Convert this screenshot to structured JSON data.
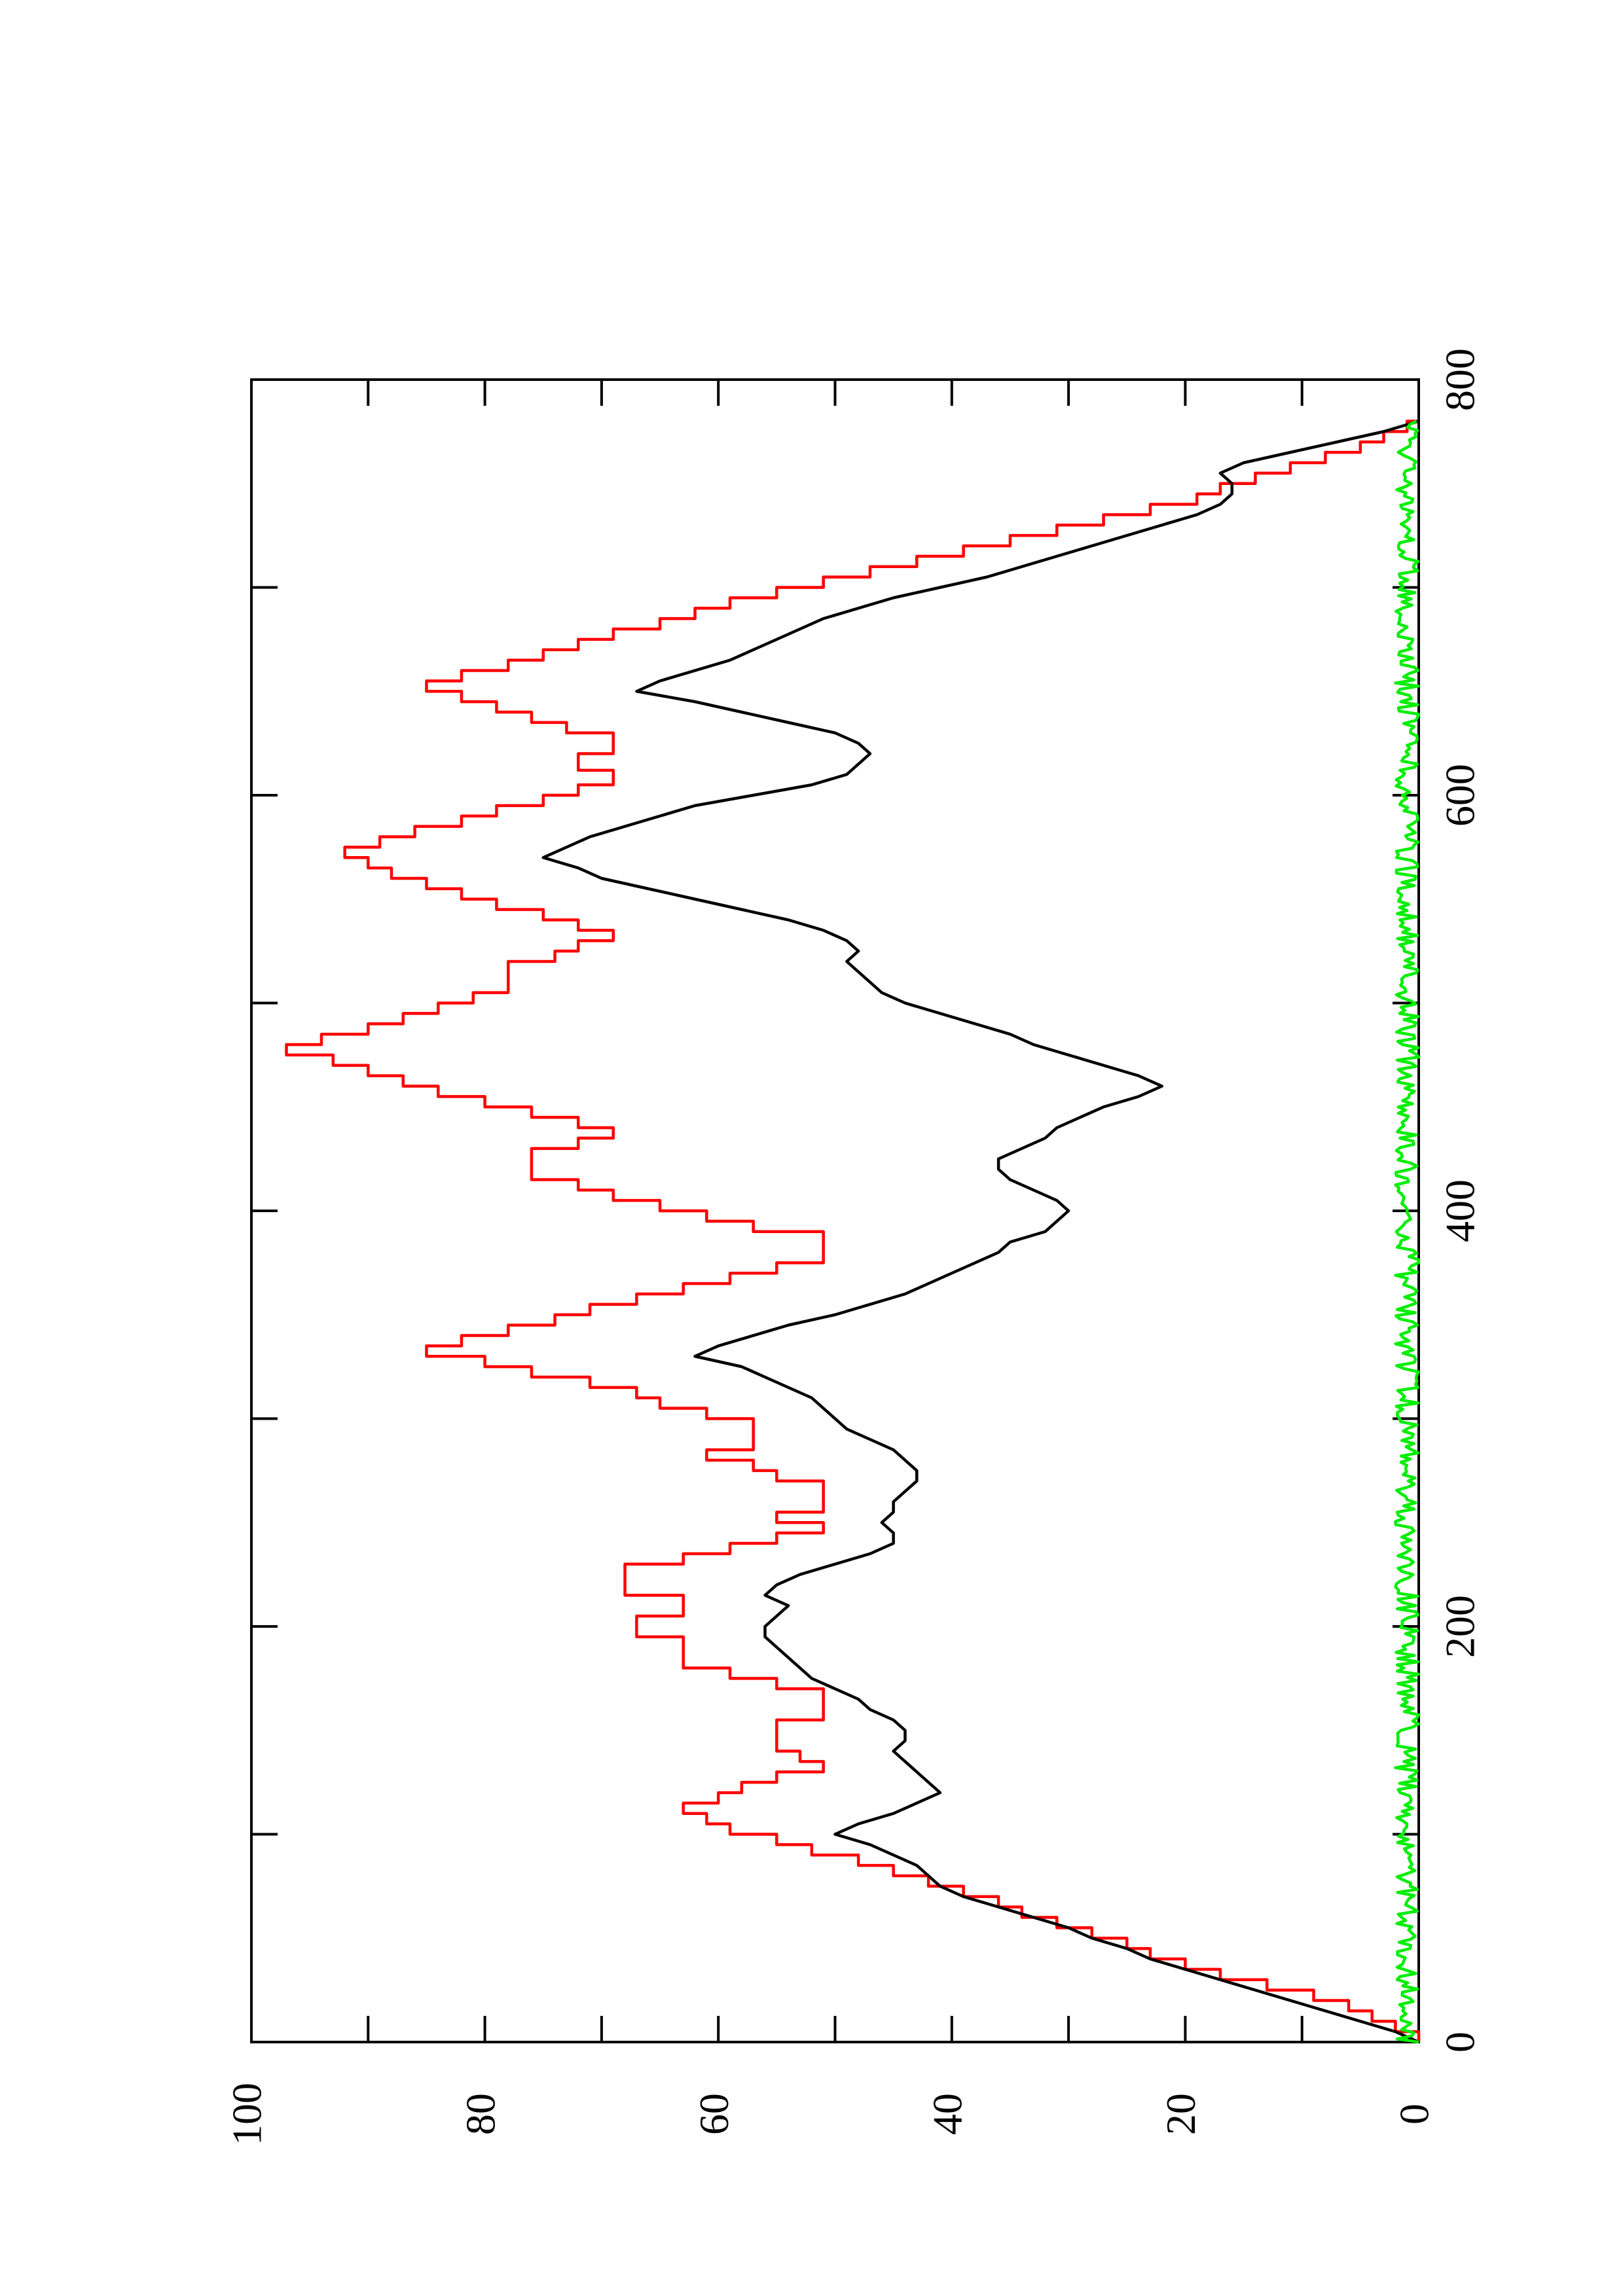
{
  "chart_data": {
    "type": "line",
    "orientation": "rotated 90 degrees counter-clockwise",
    "title": "",
    "xlabel": "",
    "ylabel": "",
    "xlim": [
      0,
      800
    ],
    "ylim": [
      0,
      100
    ],
    "x_ticks": [
      "0",
      "200",
      "400",
      "600",
      "800"
    ],
    "y_ticks": [
      "0",
      "20",
      "40",
      "60",
      "80",
      "100"
    ],
    "grid": false,
    "legend": "none",
    "series": [
      {
        "color": "#ff0000",
        "style": "step",
        "points": [
          [
            0,
            0
          ],
          [
            5,
            2
          ],
          [
            10,
            4
          ],
          [
            15,
            6
          ],
          [
            20,
            9
          ],
          [
            25,
            13
          ],
          [
            30,
            17
          ],
          [
            35,
            20
          ],
          [
            40,
            23
          ],
          [
            45,
            25
          ],
          [
            50,
            28
          ],
          [
            55,
            31
          ],
          [
            60,
            34
          ],
          [
            65,
            36
          ],
          [
            70,
            39
          ],
          [
            75,
            42
          ],
          [
            80,
            45
          ],
          [
            85,
            48
          ],
          [
            90,
            52
          ],
          [
            95,
            55
          ],
          [
            100,
            59
          ],
          [
            105,
            61
          ],
          [
            110,
            63
          ],
          [
            115,
            60
          ],
          [
            120,
            58
          ],
          [
            125,
            55
          ],
          [
            130,
            51
          ],
          [
            135,
            53
          ],
          [
            140,
            55
          ],
          [
            150,
            55
          ],
          [
            155,
            51
          ],
          [
            165,
            51
          ],
          [
            170,
            55
          ],
          [
            175,
            59
          ],
          [
            180,
            63
          ],
          [
            190,
            63
          ],
          [
            195,
            67
          ],
          [
            200,
            67
          ],
          [
            205,
            63
          ],
          [
            210,
            63
          ],
          [
            215,
            68
          ],
          [
            225,
            68
          ],
          [
            230,
            63
          ],
          [
            235,
            59
          ],
          [
            240,
            55
          ],
          [
            245,
            51
          ],
          [
            250,
            55
          ],
          [
            255,
            51
          ],
          [
            265,
            51
          ],
          [
            270,
            55
          ],
          [
            275,
            57
          ],
          [
            280,
            61
          ],
          [
            285,
            57
          ],
          [
            290,
            57
          ],
          [
            300,
            61
          ],
          [
            305,
            65
          ],
          [
            310,
            67
          ],
          [
            315,
            71
          ],
          [
            320,
            76
          ],
          [
            325,
            80
          ],
          [
            330,
            85
          ],
          [
            335,
            82
          ],
          [
            340,
            78
          ],
          [
            345,
            74
          ],
          [
            350,
            71
          ],
          [
            355,
            67
          ],
          [
            360,
            63
          ],
          [
            365,
            59
          ],
          [
            370,
            55
          ],
          [
            375,
            51
          ],
          [
            385,
            51
          ],
          [
            390,
            57
          ],
          [
            395,
            61
          ],
          [
            400,
            65
          ],
          [
            405,
            69
          ],
          [
            410,
            72
          ],
          [
            415,
            76
          ],
          [
            425,
            76
          ],
          [
            430,
            72
          ],
          [
            435,
            69
          ],
          [
            440,
            72
          ],
          [
            445,
            76
          ],
          [
            450,
            80
          ],
          [
            455,
            84
          ],
          [
            460,
            87
          ],
          [
            465,
            90
          ],
          [
            470,
            93
          ],
          [
            475,
            97
          ],
          [
            480,
            94
          ],
          [
            485,
            90
          ],
          [
            490,
            87
          ],
          [
            495,
            84
          ],
          [
            500,
            81
          ],
          [
            505,
            78
          ],
          [
            515,
            78
          ],
          [
            520,
            74
          ],
          [
            525,
            72
          ],
          [
            530,
            69
          ],
          [
            535,
            72
          ],
          [
            540,
            75
          ],
          [
            545,
            79
          ],
          [
            550,
            82
          ],
          [
            555,
            85
          ],
          [
            560,
            88
          ],
          [
            565,
            90
          ],
          [
            570,
            92
          ],
          [
            575,
            89
          ],
          [
            580,
            86
          ],
          [
            585,
            82
          ],
          [
            590,
            79
          ],
          [
            595,
            75
          ],
          [
            600,
            72
          ],
          [
            605,
            69
          ],
          [
            610,
            69
          ],
          [
            612,
            72
          ],
          [
            618,
            72
          ],
          [
            620,
            69
          ],
          [
            625,
            69
          ],
          [
            630,
            73
          ],
          [
            635,
            76
          ],
          [
            640,
            79
          ],
          [
            645,
            82
          ],
          [
            650,
            85
          ],
          [
            655,
            82
          ],
          [
            660,
            78
          ],
          [
            665,
            75
          ],
          [
            670,
            72
          ],
          [
            675,
            69
          ],
          [
            680,
            65
          ],
          [
            685,
            62
          ],
          [
            690,
            59
          ],
          [
            695,
            55
          ],
          [
            700,
            51
          ],
          [
            705,
            47
          ],
          [
            710,
            43
          ],
          [
            715,
            39
          ],
          [
            720,
            35
          ],
          [
            725,
            31
          ],
          [
            730,
            27
          ],
          [
            735,
            23
          ],
          [
            740,
            19
          ],
          [
            745,
            17
          ],
          [
            750,
            14
          ],
          [
            755,
            11
          ],
          [
            760,
            8
          ],
          [
            765,
            5
          ],
          [
            770,
            3
          ],
          [
            775,
            1
          ],
          [
            780,
            0
          ]
        ]
      },
      {
        "color": "#000000",
        "style": "line",
        "points": [
          [
            0,
            0
          ],
          [
            5,
            2
          ],
          [
            10,
            5
          ],
          [
            15,
            8
          ],
          [
            20,
            11
          ],
          [
            25,
            14
          ],
          [
            30,
            17
          ],
          [
            35,
            20
          ],
          [
            40,
            23
          ],
          [
            45,
            25
          ],
          [
            50,
            28
          ],
          [
            55,
            30
          ],
          [
            60,
            33
          ],
          [
            65,
            36
          ],
          [
            70,
            39
          ],
          [
            75,
            41
          ],
          [
            80,
            42
          ],
          [
            85,
            43
          ],
          [
            90,
            45
          ],
          [
            95,
            47
          ],
          [
            100,
            50
          ],
          [
            105,
            48
          ],
          [
            110,
            45
          ],
          [
            115,
            43
          ],
          [
            120,
            41
          ],
          [
            125,
            42
          ],
          [
            130,
            43
          ],
          [
            135,
            44
          ],
          [
            140,
            45
          ],
          [
            145,
            44
          ],
          [
            150,
            44
          ],
          [
            155,
            45
          ],
          [
            160,
            47
          ],
          [
            165,
            48
          ],
          [
            170,
            50
          ],
          [
            175,
            52
          ],
          [
            180,
            53
          ],
          [
            185,
            54
          ],
          [
            190,
            55
          ],
          [
            195,
            56
          ],
          [
            200,
            56
          ],
          [
            205,
            55
          ],
          [
            210,
            54
          ],
          [
            215,
            56
          ],
          [
            220,
            55
          ],
          [
            225,
            53
          ],
          [
            230,
            50
          ],
          [
            235,
            47
          ],
          [
            240,
            45
          ],
          [
            245,
            45
          ],
          [
            250,
            46
          ],
          [
            255,
            45
          ],
          [
            260,
            45
          ],
          [
            265,
            44
          ],
          [
            270,
            43
          ],
          [
            275,
            43
          ],
          [
            280,
            44
          ],
          [
            285,
            45
          ],
          [
            290,
            47
          ],
          [
            295,
            49
          ],
          [
            300,
            50
          ],
          [
            305,
            51
          ],
          [
            310,
            52
          ],
          [
            315,
            54
          ],
          [
            320,
            56
          ],
          [
            325,
            58
          ],
          [
            330,
            62
          ],
          [
            335,
            60
          ],
          [
            340,
            57
          ],
          [
            345,
            54
          ],
          [
            350,
            50
          ],
          [
            355,
            47
          ],
          [
            360,
            44
          ],
          [
            365,
            42
          ],
          [
            370,
            40
          ],
          [
            375,
            38
          ],
          [
            380,
            36
          ],
          [
            385,
            35
          ],
          [
            390,
            32
          ],
          [
            395,
            31
          ],
          [
            400,
            30
          ],
          [
            405,
            31
          ],
          [
            410,
            33
          ],
          [
            415,
            35
          ],
          [
            420,
            36
          ],
          [
            425,
            36
          ],
          [
            430,
            34
          ],
          [
            435,
            32
          ],
          [
            440,
            31
          ],
          [
            445,
            29
          ],
          [
            450,
            27
          ],
          [
            455,
            24
          ],
          [
            460,
            22
          ],
          [
            465,
            24
          ],
          [
            470,
            27
          ],
          [
            475,
            30
          ],
          [
            480,
            33
          ],
          [
            485,
            35
          ],
          [
            490,
            38
          ],
          [
            495,
            41
          ],
          [
            500,
            44
          ],
          [
            505,
            46
          ],
          [
            510,
            47
          ],
          [
            515,
            48
          ],
          [
            520,
            49
          ],
          [
            525,
            48
          ],
          [
            530,
            49
          ],
          [
            535,
            51
          ],
          [
            540,
            54
          ],
          [
            545,
            58
          ],
          [
            550,
            62
          ],
          [
            555,
            66
          ],
          [
            560,
            70
          ],
          [
            565,
            72
          ],
          [
            570,
            75
          ],
          [
            575,
            73
          ],
          [
            580,
            71
          ],
          [
            585,
            68
          ],
          [
            590,
            65
          ],
          [
            595,
            62
          ],
          [
            600,
            57
          ],
          [
            605,
            52
          ],
          [
            610,
            49
          ],
          [
            615,
            48
          ],
          [
            620,
            47
          ],
          [
            625,
            48
          ],
          [
            630,
            50
          ],
          [
            635,
            54
          ],
          [
            640,
            58
          ],
          [
            645,
            62
          ],
          [
            650,
            67
          ],
          [
            655,
            65
          ],
          [
            660,
            62
          ],
          [
            665,
            59
          ],
          [
            670,
            57
          ],
          [
            675,
            55
          ],
          [
            680,
            53
          ],
          [
            685,
            51
          ],
          [
            690,
            48
          ],
          [
            695,
            45
          ],
          [
            700,
            41
          ],
          [
            705,
            37
          ],
          [
            710,
            34
          ],
          [
            715,
            31
          ],
          [
            720,
            28
          ],
          [
            725,
            25
          ],
          [
            730,
            22
          ],
          [
            735,
            19
          ],
          [
            740,
            17
          ],
          [
            745,
            16
          ],
          [
            750,
            16
          ],
          [
            755,
            17
          ],
          [
            760,
            15
          ],
          [
            765,
            11
          ],
          [
            770,
            7
          ],
          [
            775,
            3
          ],
          [
            780,
            0
          ]
        ]
      },
      {
        "color": "#00ee00",
        "style": "noisy",
        "amplitude": 2,
        "x_range": [
          0,
          780
        ]
      }
    ]
  }
}
